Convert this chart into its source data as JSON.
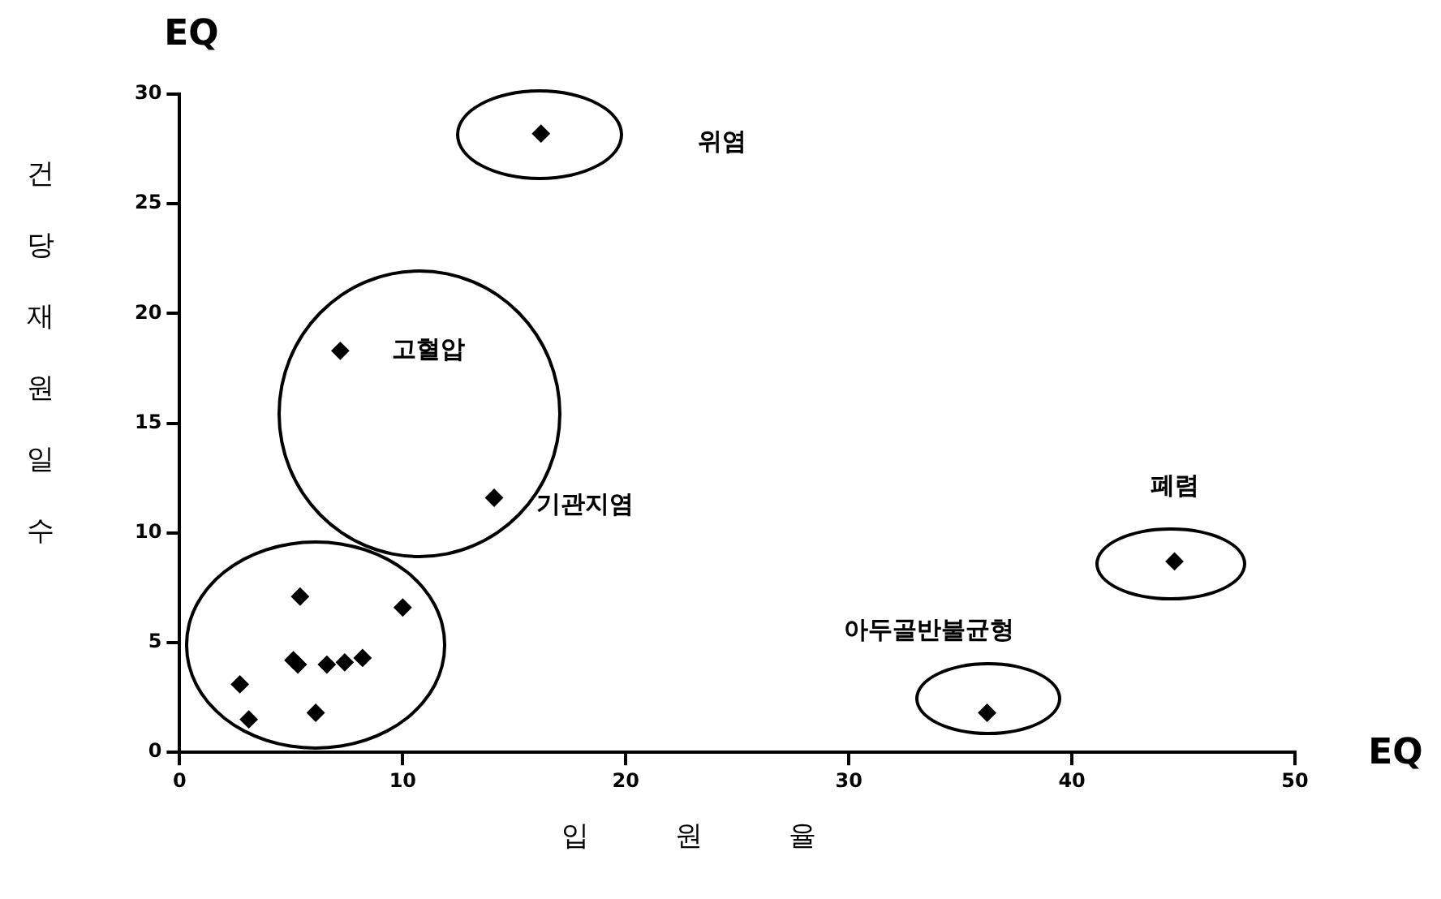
{
  "chart_data": {
    "type": "scatter",
    "xlabel": "입 원 율",
    "ylabel": "건당재원일수",
    "x": [
      16.2,
      7.2,
      14.1,
      44.6,
      36.2,
      5.4,
      10.0,
      5.1,
      5.3,
      6.6,
      7.4,
      8.2,
      2.7,
      3.1,
      6.1
    ],
    "values": [
      28.2,
      18.3,
      11.6,
      8.7,
      1.8,
      7.1,
      6.6,
      4.2,
      4.0,
      4.0,
      4.1,
      4.3,
      3.1,
      1.5,
      1.8
    ],
    "color": "#000000",
    "marker": "diamond",
    "grid": false,
    "legend": false,
    "xlim": [
      0,
      50
    ],
    "xticks": [
      0,
      10,
      20,
      30,
      40,
      50
    ],
    "ylim": [
      0,
      30
    ],
    "yticks": [
      0,
      5,
      10,
      15,
      20,
      25,
      30
    ],
    "annotations": [
      "위염",
      {
        "text": "고혈압",
        "x": 7.2,
        "y": 18.3
      },
      {
        "text": "기관지염",
        "x": 14.1,
        "y": 11.6
      },
      {
        "text": "폐렴",
        "x": 44.6,
        "y": 8.7
      },
      {
        "text": "아두골반불균형",
        "x": 36.2,
        "y": 1.8
      },
      "EQ",
      "EQ"
    ]
  }
}
